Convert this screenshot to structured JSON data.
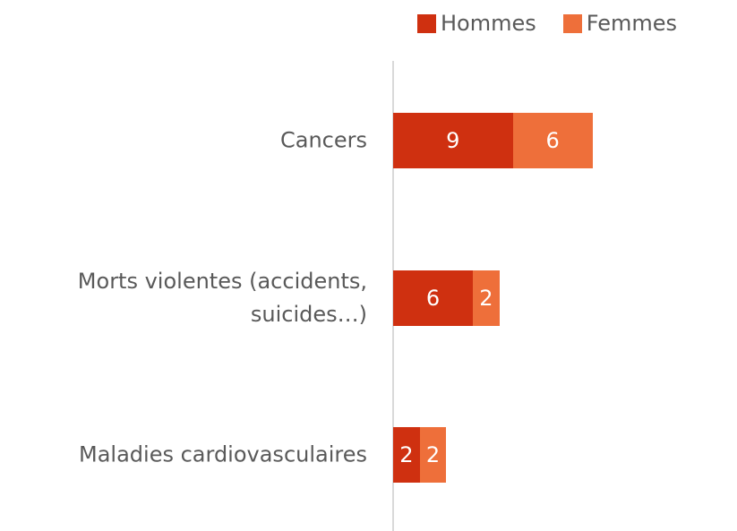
{
  "chart_data": {
    "type": "bar",
    "orientation": "horizontal",
    "stacked": true,
    "categories": [
      "Cancers",
      "Morts violentes (accidents, suicides…)",
      "Maladies cardiovasculaires"
    ],
    "series": [
      {
        "name": "Hommes",
        "color": "#cf3010",
        "values": [
          9,
          6,
          2
        ]
      },
      {
        "name": "Femmes",
        "color": "#ee6f3a",
        "values": [
          6,
          2,
          2
        ]
      }
    ],
    "legend": "top-right"
  }
}
